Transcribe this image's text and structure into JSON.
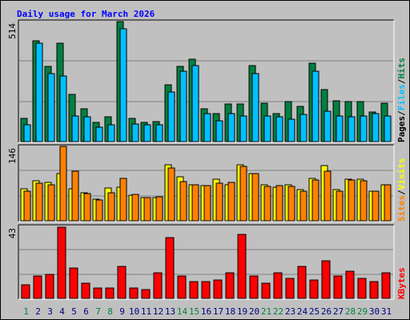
{
  "chart_data": [
    {
      "type": "bar",
      "title": "Daily usage for March 2026",
      "panel": "pages-files-hits",
      "axis_max_label": "514",
      "ylim": [
        0,
        514
      ],
      "legend": [
        "Pages",
        "/",
        "Files",
        "/",
        "Hits"
      ],
      "legend_placement": "right, vertical",
      "categories": [
        "1",
        "2",
        "3",
        "4",
        "5",
        "6",
        "7",
        "8",
        "9",
        "10",
        "11",
        "12",
        "13",
        "14",
        "15",
        "16",
        "17",
        "18",
        "19",
        "20",
        "21",
        "22",
        "23",
        "24",
        "25",
        "26",
        "27",
        "28",
        "29",
        "30",
        "31"
      ],
      "series": [
        {
          "name": "Hits",
          "color": "#008040",
          "values": [
            100,
            430,
            320,
            420,
            200,
            140,
            80,
            105,
            510,
            100,
            80,
            85,
            240,
            320,
            350,
            140,
            120,
            160,
            160,
            325,
            165,
            120,
            170,
            150,
            335,
            220,
            175,
            170,
            170,
            125,
            165
          ]
        },
        {
          "name": "Files",
          "color": "#00c0ff",
          "values": [
            72,
            420,
            290,
            280,
            110,
            105,
            60,
            70,
            480,
            75,
            70,
            70,
            210,
            300,
            325,
            120,
            90,
            120,
            110,
            290,
            110,
            105,
            95,
            115,
            300,
            130,
            110,
            105,
            110,
            120,
            110
          ]
        }
      ]
    },
    {
      "type": "bar",
      "panel": "sites-visits",
      "axis_max_label": "146",
      "ylim": [
        0,
        146
      ],
      "legend": [
        "Sites",
        "/",
        "Visits"
      ],
      "legend_placement": "right, vertical",
      "categories": [
        "1",
        "2",
        "3",
        "4",
        "5",
        "6",
        "7",
        "8",
        "9",
        "10",
        "11",
        "12",
        "13",
        "14",
        "15",
        "16",
        "17",
        "18",
        "19",
        "20",
        "21",
        "22",
        "23",
        "24",
        "25",
        "26",
        "27",
        "28",
        "29",
        "30",
        "31"
      ],
      "series": [
        {
          "name": "Visits",
          "color": "#ffff00",
          "values": [
            62,
            78,
            74,
            92,
            62,
            55,
            42,
            63,
            65,
            50,
            45,
            45,
            108,
            85,
            70,
            68,
            80,
            70,
            108,
            92,
            70,
            65,
            70,
            60,
            82,
            107,
            60,
            80,
            80,
            57,
            70
          ]
        },
        {
          "name": "Sites",
          "color": "#ff8000",
          "values": [
            58,
            73,
            70,
            144,
            97,
            53,
            41,
            55,
            82,
            51,
            45,
            46,
            103,
            76,
            70,
            68,
            73,
            74,
            105,
            92,
            67,
            68,
            67,
            58,
            79,
            97,
            58,
            79,
            78,
            57,
            70
          ]
        }
      ]
    },
    {
      "type": "bar",
      "panel": "kbytes",
      "axis_max_label": "43",
      "ylim": [
        0,
        43
      ],
      "legend": [
        "KBytes"
      ],
      "legend_placement": "right, vertical",
      "categories": [
        "1",
        "2",
        "3",
        "4",
        "5",
        "6",
        "7",
        "8",
        "9",
        "10",
        "11",
        "12",
        "13",
        "14",
        "15",
        "16",
        "17",
        "18",
        "19",
        "20",
        "21",
        "22",
        "23",
        "24",
        "25",
        "26",
        "27",
        "28",
        "29",
        "30",
        "31"
      ],
      "series": [
        {
          "name": "KBytes",
          "color": "#ff0000",
          "values": [
            8,
            13,
            14,
            42,
            18,
            9,
            6,
            6,
            19,
            6,
            5,
            15,
            36,
            13,
            10,
            10,
            11,
            15,
            38,
            13,
            9,
            15,
            12,
            19,
            11,
            22,
            13,
            16,
            12,
            10,
            15
          ]
        }
      ]
    }
  ],
  "x_labels": {
    "values": [
      "1",
      "2",
      "3",
      "4",
      "5",
      "6",
      "7",
      "8",
      "9",
      "10",
      "11",
      "12",
      "13",
      "14",
      "15",
      "16",
      "17",
      "18",
      "19",
      "20",
      "21",
      "22",
      "23",
      "24",
      "25",
      "26",
      "27",
      "28",
      "29",
      "30",
      "31"
    ],
    "weekend_days": [
      1,
      7,
      8,
      14,
      15,
      21,
      22,
      28,
      29
    ],
    "weekday_color": "#000080",
    "weekend_color": "#008040"
  }
}
